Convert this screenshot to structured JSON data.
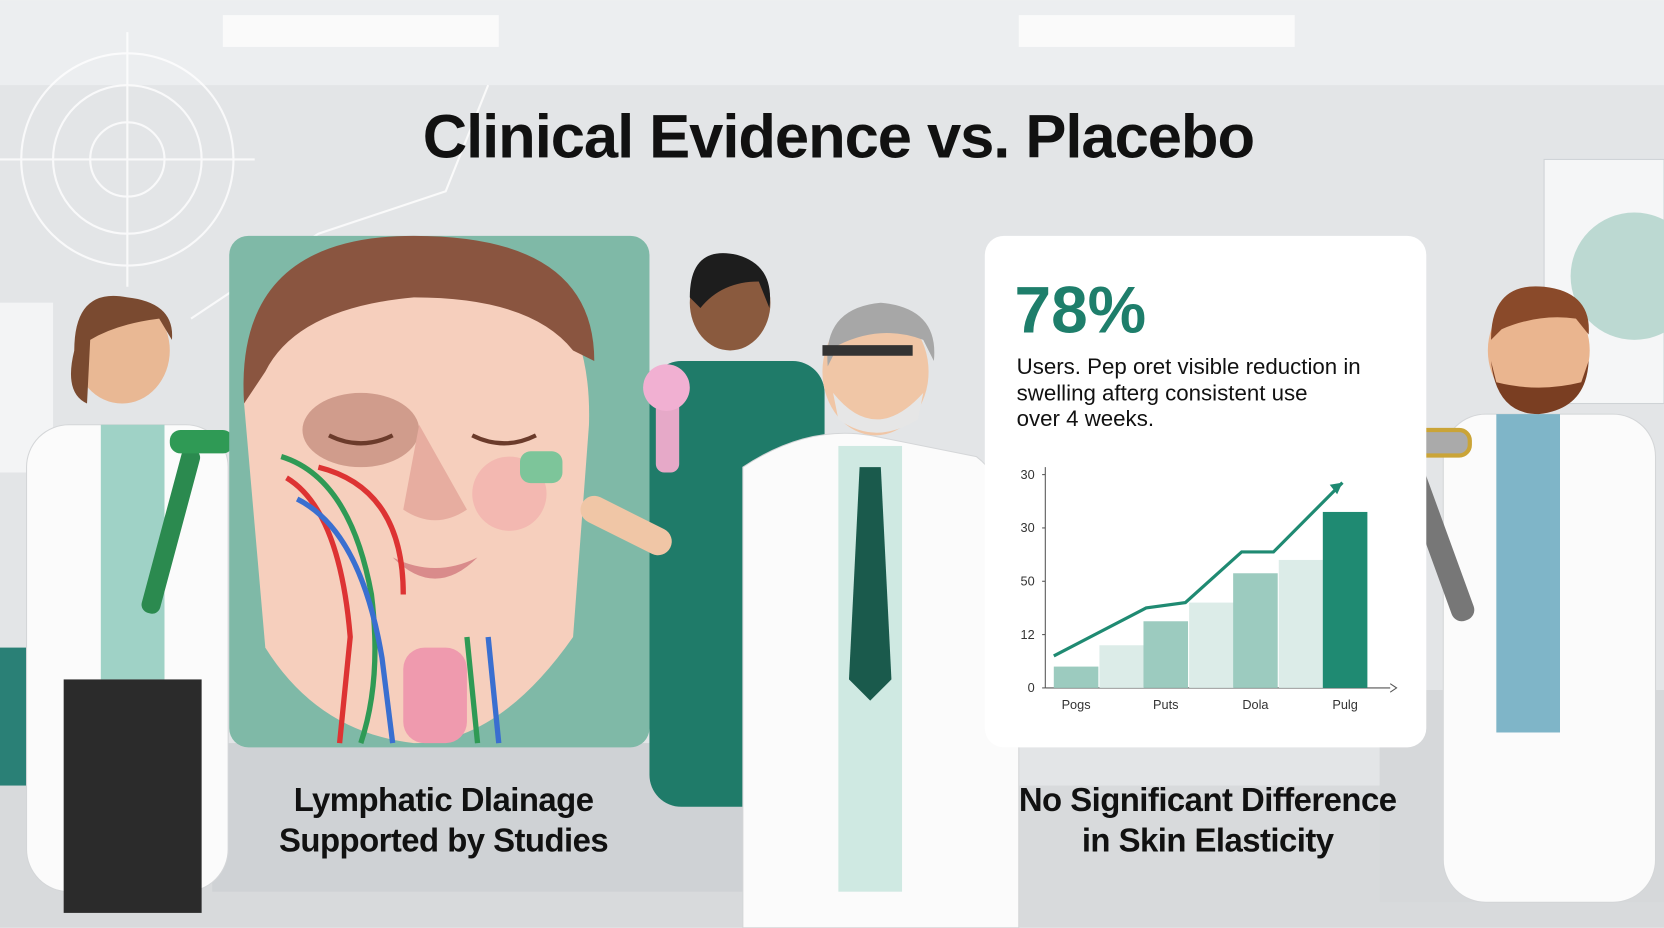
{
  "title": "Clinical Evidence vs. Placebo",
  "left_panel": {
    "caption": [
      "Lymphatic Dlainage",
      "Supported by Studies"
    ]
  },
  "stat_card": {
    "stat": "78%",
    "description": [
      "Users. Pep oret visible reduction in",
      "swelling afterg consistent use",
      "over 4 weeks."
    ],
    "chart": {
      "type": "bar",
      "ylim": [
        0,
        4
      ],
      "yticks": [
        {
          "value": 0,
          "label": "0"
        },
        {
          "value": 1,
          "label": "12"
        },
        {
          "value": 2,
          "label": "50"
        },
        {
          "value": 3,
          "label": "30"
        },
        {
          "value": 4,
          "label": "30"
        }
      ],
      "categories": [
        "Pogs",
        "Puts",
        "Dola",
        "Pulg"
      ],
      "values": [
        0.4,
        1.25,
        2.15,
        3.3
      ],
      "colors": [
        "#9ccbbf",
        "#9ccbbf",
        "#9ccbbf",
        "#1f8a72"
      ],
      "background_values": [
        0.8,
        1.6,
        2.4
      ],
      "background_color": "#dcece8",
      "trend": [
        0.6,
        1.5,
        1.6,
        2.55,
        2.55,
        3.85
      ],
      "trend_color": "#1f8a72"
    }
  },
  "right_caption": [
    "No Significant Difference",
    "in Skin Elasticity"
  ]
}
